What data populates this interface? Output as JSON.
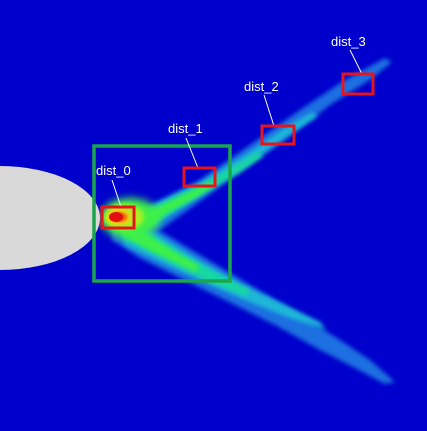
{
  "scene": {
    "background_color": "#0000cc",
    "body_color": "#d9d9d9",
    "region_box_color": "#1aa64b",
    "probe_box_color": "#e8141c",
    "leader_line_color": "#ffffff",
    "colormap": [
      "#0000cc",
      "#0a3fd6",
      "#1f7fe0",
      "#1fc2d6",
      "#19e0a0",
      "#3cf04a",
      "#a8f020",
      "#f0e010",
      "#f08010",
      "#e01010"
    ]
  },
  "probes": [
    {
      "label": "dist_0"
    },
    {
      "label": "dist_1"
    },
    {
      "label": "dist_2"
    },
    {
      "label": "dist_3"
    }
  ]
}
